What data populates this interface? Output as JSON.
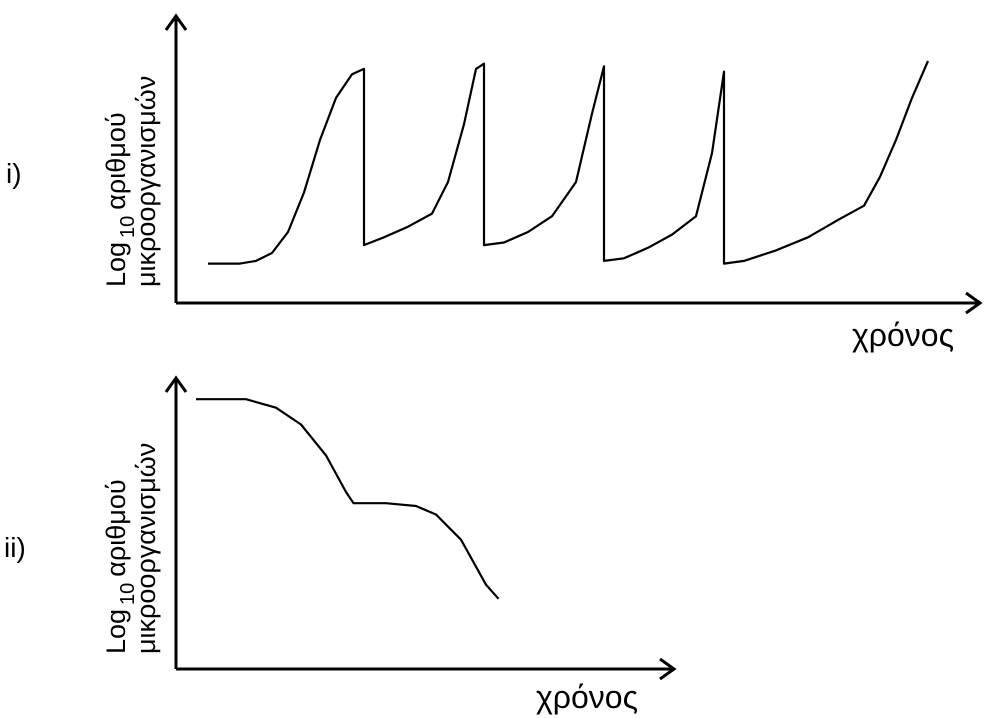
{
  "chart_data": [
    {
      "type": "line",
      "panel_label": "i)",
      "ylabel": {
        "prefix": "Log",
        "subscript": "10",
        "word1": "αριθμού",
        "word2": "μικροοργανισμών"
      },
      "xlabel": "χρόνος",
      "grid": false,
      "legend": "none",
      "xlim": [
        0,
        100
      ],
      "ylim": [
        0,
        100
      ],
      "series": [
        {
          "x": [
            4,
            8,
            10,
            12,
            14,
            16,
            18,
            20,
            22,
            23.5,
            23.5,
            26,
            29,
            32,
            34,
            36,
            37.5,
            38.5,
            38.5,
            41,
            44,
            47,
            50,
            52,
            53.5,
            53.5,
            56,
            59,
            62,
            65,
            67,
            68.5,
            68.5,
            71,
            75,
            79,
            83,
            86,
            88,
            90,
            92,
            94
          ],
          "y": [
            15,
            15,
            16,
            19,
            27,
            42,
            62,
            78,
            87,
            89,
            22,
            25,
            29,
            34,
            46,
            68,
            89,
            91,
            22,
            23,
            27,
            33,
            46,
            72,
            90,
            16,
            17,
            21,
            26,
            33,
            57,
            88,
            15,
            16,
            20,
            25,
            32,
            37,
            48,
            62,
            78,
            92
          ]
        }
      ]
    },
    {
      "type": "line",
      "panel_label": "ii)",
      "ylabel": {
        "prefix": "Log",
        "subscript": "10",
        "word1": "αριθμού",
        "word2": "μικροοργανισμών"
      },
      "xlabel": "χρόνος",
      "grid": false,
      "legend": "none",
      "xlim": [
        0,
        100
      ],
      "ylim": [
        0,
        100
      ],
      "series": [
        {
          "x": [
            4,
            10,
            14,
            20,
            25,
            30,
            34,
            35.5,
            37,
            42,
            48,
            52,
            57,
            62,
            64.5
          ],
          "y": [
            96,
            96,
            96,
            93,
            87,
            76,
            63,
            59,
            59,
            59,
            58,
            55,
            46,
            30,
            25
          ]
        }
      ]
    }
  ]
}
